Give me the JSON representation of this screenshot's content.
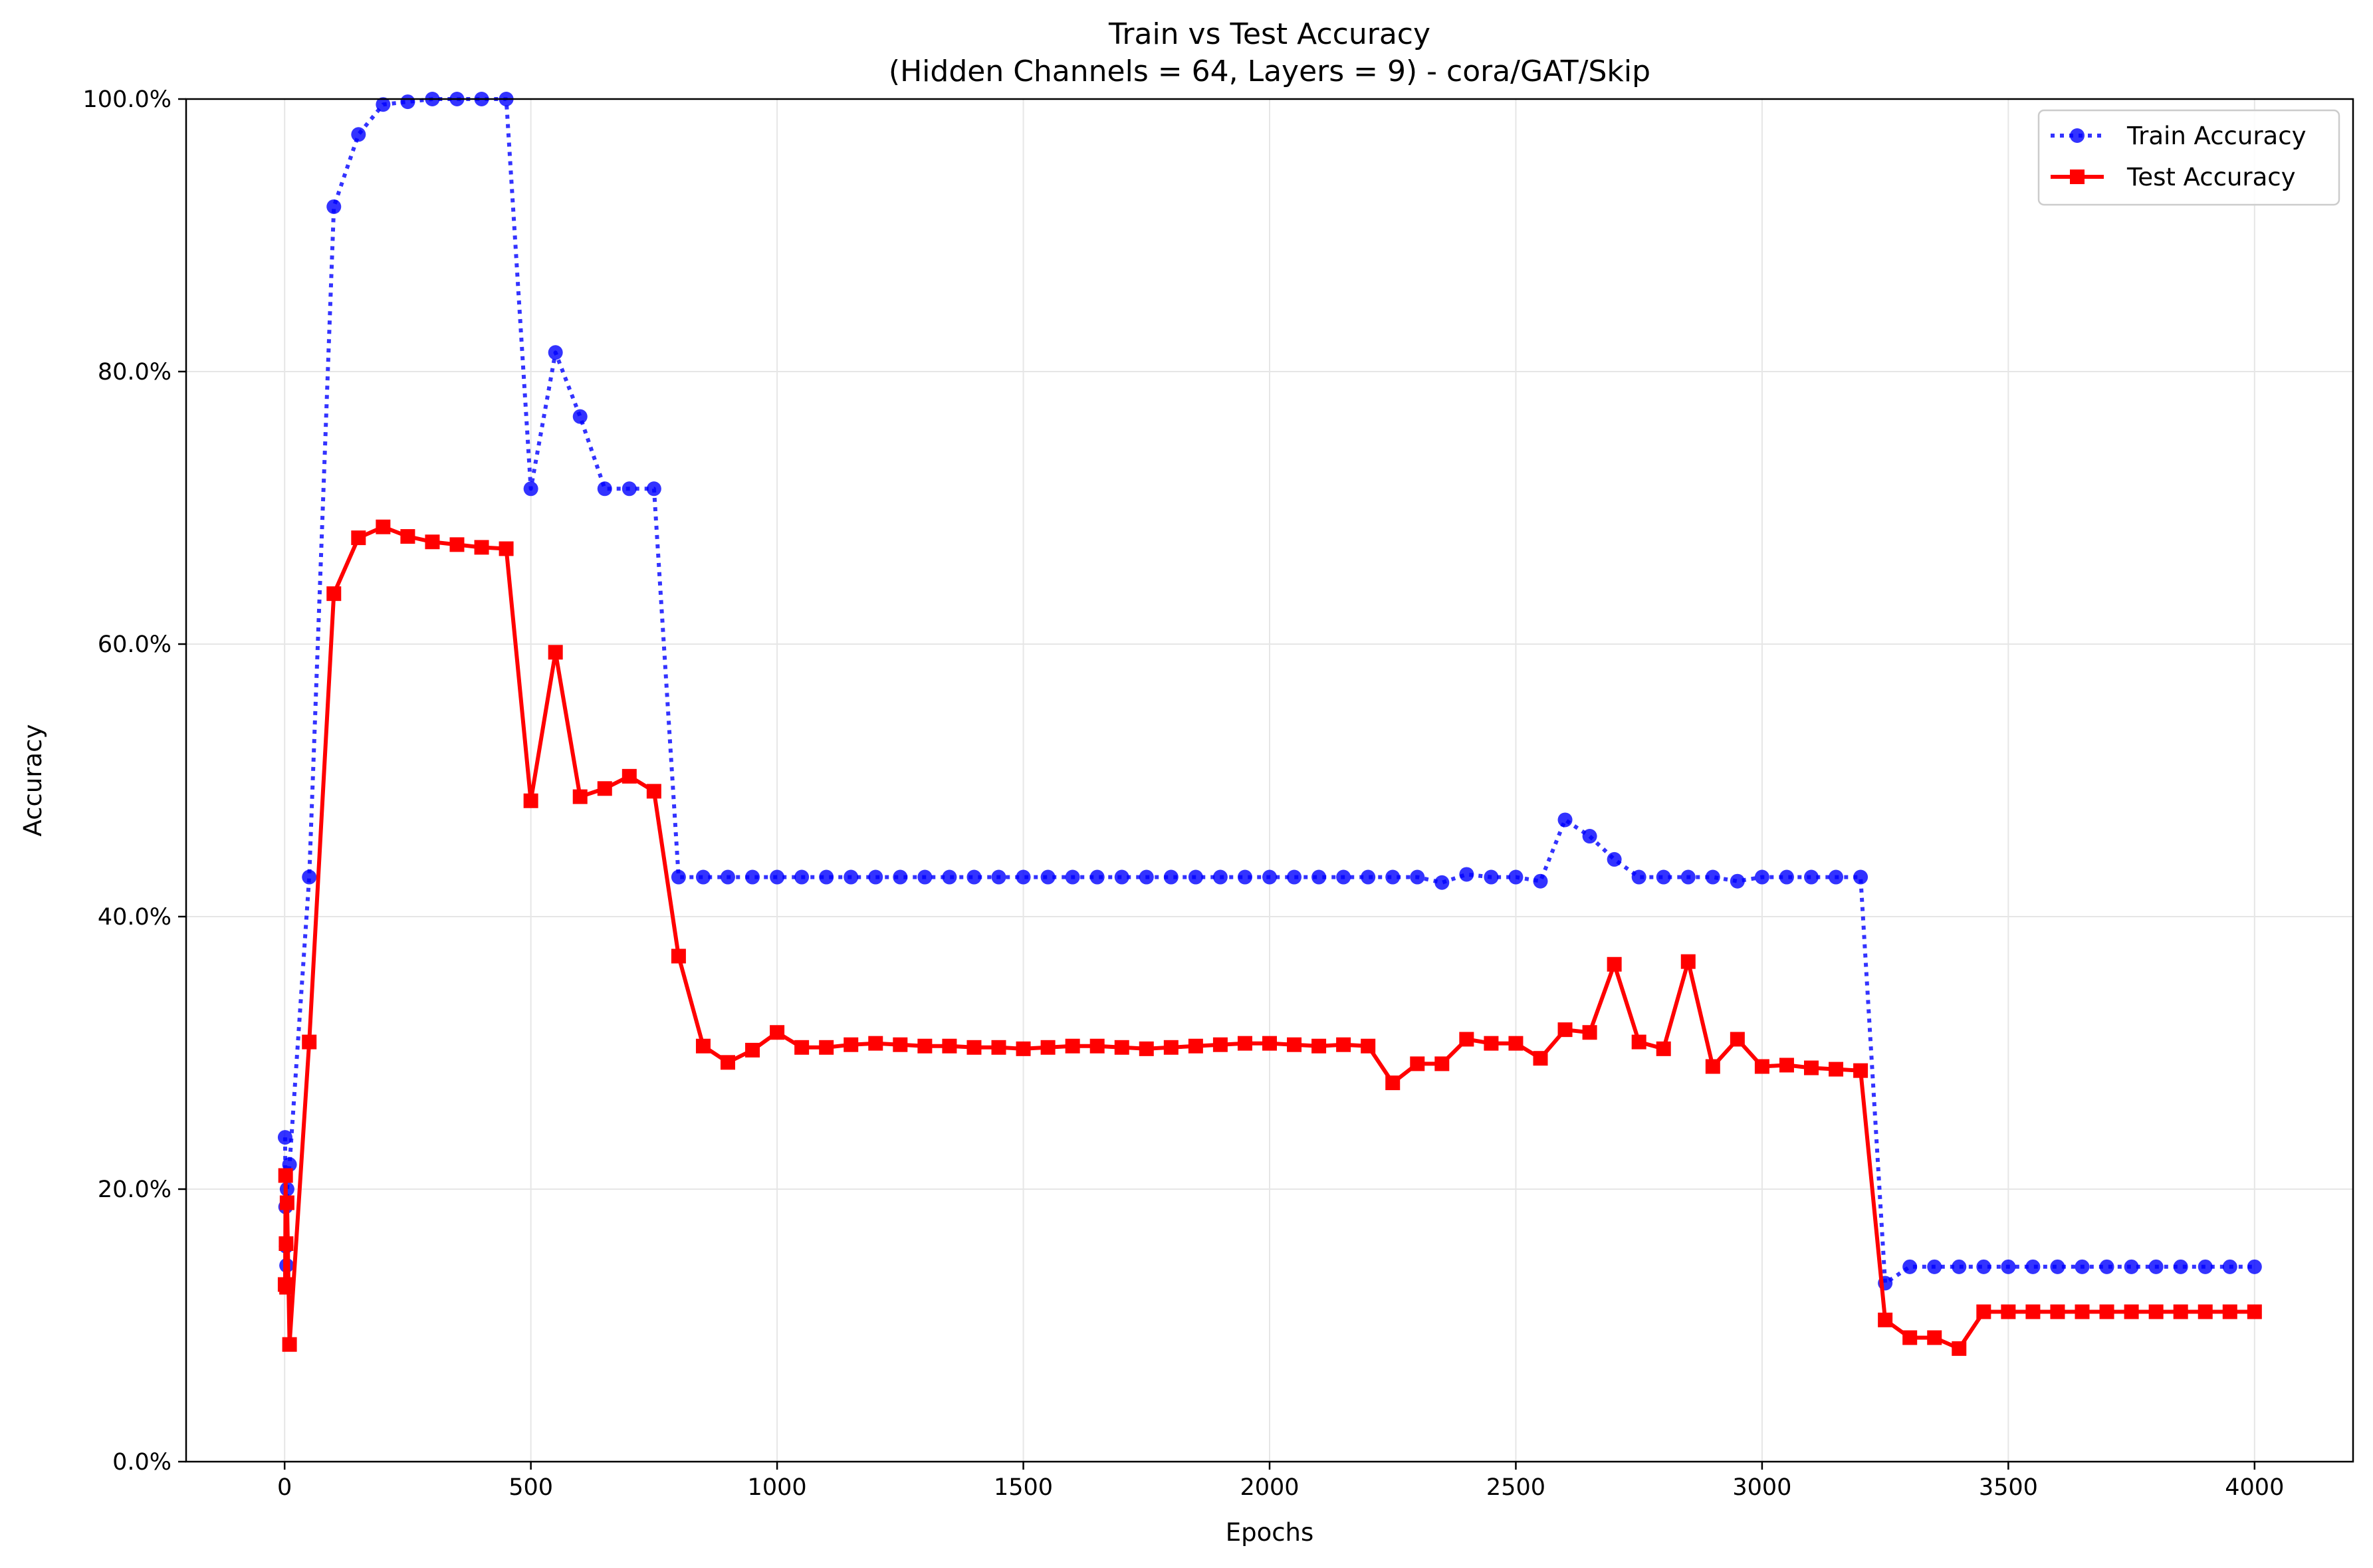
{
  "chart_data": {
    "type": "line",
    "title": "Train vs Test Accuracy",
    "subtitle": "(Hidden Channels = 64, Layers = 9) - cora/GAT/Skip",
    "xlabel": "Epochs",
    "ylabel": "Accuracy",
    "xlim": [
      -200,
      4200
    ],
    "ylim": [
      0,
      100
    ],
    "xticks": [
      0,
      500,
      1000,
      1500,
      2000,
      2500,
      3000,
      3500,
      4000
    ],
    "xtick_labels": [
      "0",
      "500",
      "1000",
      "1500",
      "2000",
      "2500",
      "3000",
      "3500",
      "4000"
    ],
    "yticks": [
      0,
      20,
      40,
      60,
      80,
      100
    ],
    "ytick_labels": [
      "0.0%",
      "20.0%",
      "40.0%",
      "60.0%",
      "80.0%",
      "100.0%"
    ],
    "grid": true,
    "legend_position": "top-right",
    "x": [
      1,
      2,
      3,
      4,
      5,
      10,
      50,
      100,
      150,
      200,
      250,
      300,
      350,
      400,
      450,
      500,
      550,
      600,
      650,
      700,
      750,
      800,
      850,
      900,
      950,
      1000,
      1050,
      1100,
      1150,
      1200,
      1250,
      1300,
      1350,
      1400,
      1450,
      1500,
      1550,
      1600,
      1650,
      1700,
      1750,
      1800,
      1850,
      1900,
      1950,
      2000,
      2050,
      2100,
      2150,
      2200,
      2250,
      2300,
      2350,
      2400,
      2450,
      2500,
      2550,
      2600,
      2650,
      2700,
      2750,
      2800,
      2850,
      2900,
      2950,
      3000,
      3050,
      3100,
      3150,
      3200,
      3250,
      3300,
      3350,
      3400,
      3450,
      3500,
      3550,
      3600,
      3650,
      3700,
      3750,
      3800,
      3850,
      3900,
      3950,
      4000
    ],
    "series": [
      {
        "name": "Train Accuracy",
        "color": "#0000ff",
        "line_style": "dotted",
        "marker": "circle",
        "values": [
          23.8,
          18.7,
          15.8,
          14.4,
          20.0,
          21.8,
          42.9,
          92.1,
          97.4,
          99.6,
          99.8,
          100.0,
          100.0,
          100.0,
          100.0,
          71.4,
          81.4,
          76.7,
          71.4,
          71.4,
          71.4,
          42.9,
          42.9,
          42.9,
          42.9,
          42.9,
          42.9,
          42.9,
          42.9,
          42.9,
          42.9,
          42.9,
          42.9,
          42.9,
          42.9,
          42.9,
          42.9,
          42.9,
          42.9,
          42.9,
          42.9,
          42.9,
          42.9,
          42.9,
          42.9,
          42.9,
          42.9,
          42.9,
          42.9,
          42.9,
          42.9,
          42.9,
          42.5,
          43.1,
          42.9,
          42.9,
          42.6,
          47.1,
          45.9,
          44.2,
          42.9,
          42.9,
          42.9,
          42.9,
          42.6,
          42.9,
          42.9,
          42.9,
          42.9,
          42.9,
          13.1,
          14.3,
          14.3,
          14.3,
          14.3,
          14.3,
          14.3,
          14.3,
          14.3,
          14.3,
          14.3,
          14.3,
          14.3,
          14.3,
          14.3,
          14.3
        ]
      },
      {
        "name": "Test Accuracy",
        "color": "#ff0000",
        "line_style": "solid",
        "marker": "square",
        "values": [
          13.0,
          21.0,
          16.0,
          12.8,
          19.0,
          8.6,
          30.8,
          63.7,
          67.8,
          68.6,
          67.9,
          67.5,
          67.3,
          67.1,
          67.0,
          48.5,
          59.4,
          48.8,
          49.4,
          50.3,
          49.2,
          37.1,
          30.5,
          29.3,
          30.2,
          31.5,
          30.4,
          30.4,
          30.6,
          30.7,
          30.6,
          30.5,
          30.5,
          30.4,
          30.4,
          30.3,
          30.4,
          30.5,
          30.5,
          30.4,
          30.3,
          30.4,
          30.5,
          30.6,
          30.7,
          30.7,
          30.6,
          30.5,
          30.6,
          30.5,
          27.8,
          29.2,
          29.2,
          31.0,
          30.7,
          30.7,
          29.6,
          31.7,
          31.5,
          36.5,
          30.8,
          30.3,
          36.7,
          29.0,
          31.0,
          29.0,
          29.1,
          28.9,
          28.8,
          28.7,
          10.4,
          9.1,
          9.1,
          8.3,
          11.0,
          11.0,
          11.0,
          11.0,
          11.0,
          11.0,
          11.0,
          11.0,
          11.0,
          11.0,
          11.0,
          11.0
        ]
      }
    ]
  }
}
